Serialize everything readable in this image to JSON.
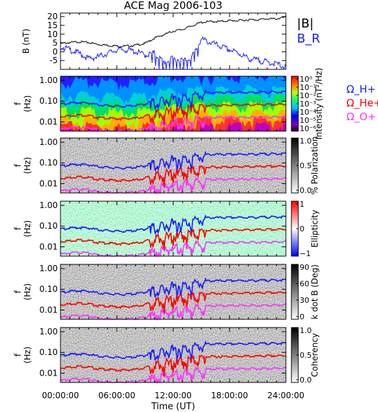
{
  "title": "ACE Mag 2006-103",
  "xlabel": "Time (UT)",
  "xticks": [
    "00:00:00",
    "06:00:00",
    "12:00:00",
    "18:00:00",
    "24:00:00"
  ],
  "chart_data": [
    {
      "type": "line",
      "ylabel": "B (nT)",
      "ylim": [
        -10,
        22
      ],
      "yticks": [
        -5,
        0,
        5,
        10,
        15,
        20
      ],
      "legend": [
        {
          "name": "|B|",
          "color": "#000000"
        },
        {
          "name": "B_R",
          "color": "#1a1aff"
        }
      ],
      "x": [
        0,
        1,
        2,
        3,
        4,
        5,
        6,
        7,
        8,
        9,
        10,
        11,
        12,
        13,
        14,
        15,
        16,
        17,
        18,
        19,
        20,
        21,
        22,
        23,
        24
      ],
      "series": [
        {
          "name": "|B|",
          "values": [
            5,
            5.5,
            6,
            5.5,
            4.5,
            4,
            3.5,
            3.5,
            4,
            5,
            8,
            10,
            12,
            13,
            15,
            17,
            17.5,
            17.5,
            18,
            18,
            18.5,
            18.5,
            19,
            19,
            20
          ]
        },
        {
          "name": "B_R",
          "values": [
            4,
            2,
            0,
            -3,
            -2,
            0,
            2,
            2,
            1,
            -1,
            0,
            -5,
            -3,
            -4,
            -2,
            8,
            6,
            4,
            2,
            0,
            -3,
            -4,
            -5,
            -6,
            -8
          ]
        }
      ]
    },
    {
      "type": "heatmap",
      "ylabel": "f (Hz)",
      "yticks": [
        "1.00",
        "0.10",
        "0.01"
      ],
      "colorbar_label": "Intensity (nT²/Hz)",
      "colorbar_ticks": [
        "10⁰",
        "10⁻¹",
        "10⁻²",
        "10⁻³",
        "10⁻⁴",
        "10⁻⁵",
        "10⁻⁶"
      ],
      "colormap": "rainbow",
      "legend": [
        {
          "name": "Ω_H+",
          "color": "#1a1aff"
        },
        {
          "name": "Ω_He+",
          "color": "#ff0000"
        },
        {
          "name": "Ω_O+",
          "color": "#ff33ff"
        }
      ]
    },
    {
      "type": "heatmap",
      "ylabel": "f (Hz)",
      "yticks": [
        "1.00",
        "0.10",
        "0.01"
      ],
      "colorbar_label": "% Polarization",
      "colorbar_ticks": [
        "1.0",
        "0.5",
        "0.0"
      ],
      "colormap": "grayscale"
    },
    {
      "type": "heatmap",
      "ylabel": "f (Hz)",
      "yticks": [
        "1.00",
        "0.10",
        "0.01"
      ],
      "colorbar_label": "Ellipticity",
      "colorbar_ticks": [
        "1",
        "0",
        "−1"
      ],
      "colormap": "blue-white-red"
    },
    {
      "type": "heatmap",
      "ylabel": "f (Hz)",
      "yticks": [
        "1.00",
        "0.10",
        "0.01"
      ],
      "colorbar_label": "k dot B (Deg)",
      "colorbar_ticks": [
        "90",
        "60",
        "30",
        "0"
      ],
      "colormap": "grayscale"
    },
    {
      "type": "heatmap",
      "ylabel": "f (Hz)",
      "yticks": [
        "1.00",
        "0.10",
        "0.01"
      ],
      "colorbar_label": "Coherency",
      "colorbar_ticks": [
        "1.0",
        "0.5",
        "0.0"
      ],
      "colormap": "grayscale"
    }
  ],
  "gyrofrequencies": {
    "x": [
      0,
      1,
      2,
      3,
      4,
      5,
      6,
      7,
      8,
      9,
      10,
      11,
      12,
      13,
      14,
      15,
      16,
      17,
      18,
      19,
      20,
      21,
      22,
      23,
      24
    ],
    "h_plus_hz": [
      0.075,
      0.085,
      0.09,
      0.085,
      0.07,
      0.065,
      0.06,
      0.06,
      0.065,
      0.075,
      0.12,
      0.15,
      0.18,
      0.2,
      0.23,
      0.26,
      0.27,
      0.27,
      0.275,
      0.275,
      0.28,
      0.28,
      0.29,
      0.29,
      0.3
    ],
    "he_plus_hz": [
      0.019,
      0.021,
      0.023,
      0.021,
      0.017,
      0.016,
      0.015,
      0.015,
      0.016,
      0.019,
      0.03,
      0.038,
      0.045,
      0.05,
      0.058,
      0.065,
      0.067,
      0.067,
      0.069,
      0.069,
      0.07,
      0.07,
      0.072,
      0.072,
      0.075
    ],
    "o_plus_hz": [
      0.0047,
      0.0053,
      0.0058,
      0.0053,
      0.0044,
      0.0041,
      0.0038,
      0.0038,
      0.0041,
      0.0047,
      0.0075,
      0.0094,
      0.011,
      0.0125,
      0.0145,
      0.016,
      0.017,
      0.017,
      0.0172,
      0.0172,
      0.0175,
      0.0175,
      0.018,
      0.018,
      0.019
    ]
  }
}
